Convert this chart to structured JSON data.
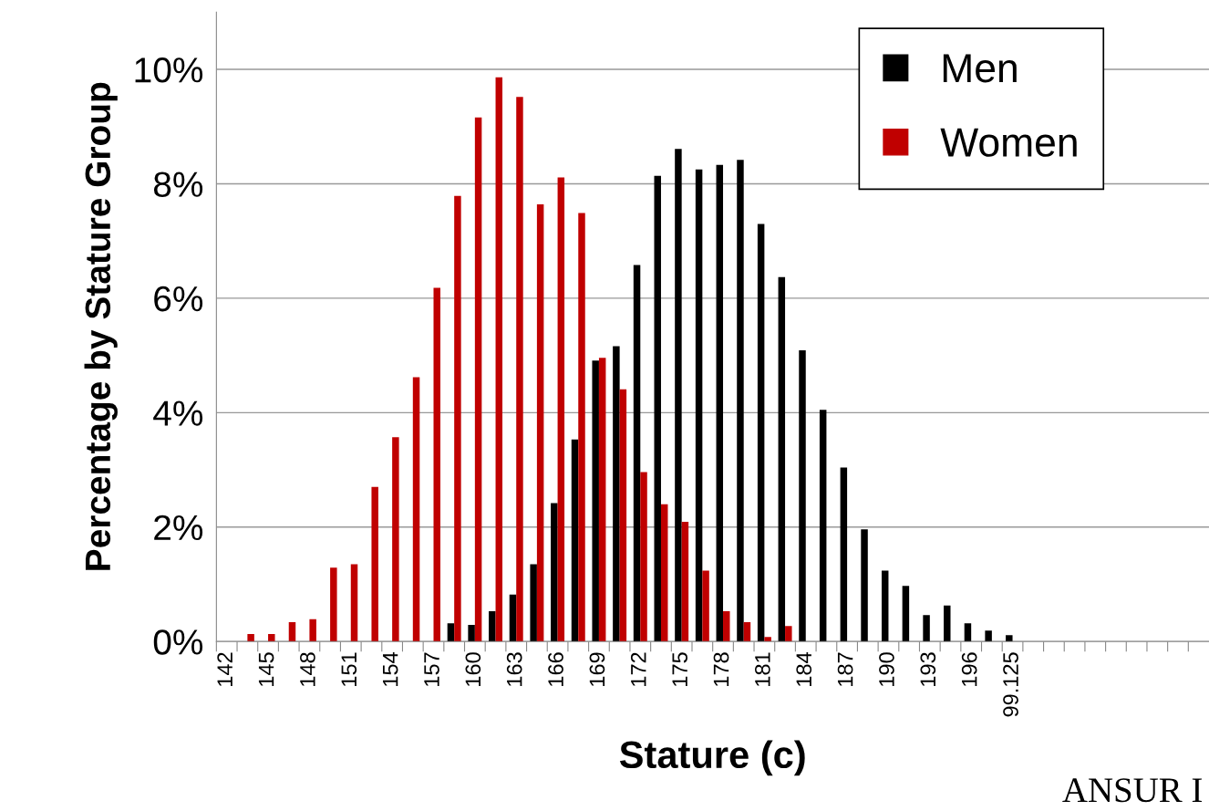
{
  "chart_data": {
    "type": "bar",
    "xlabel": "Stature (c)",
    "ylabel": "Percentage by Stature Group",
    "categories": [
      "142",
      null,
      "145",
      null,
      "148",
      null,
      "151",
      null,
      "154",
      null,
      "157",
      null,
      "160",
      null,
      "163",
      null,
      "166",
      null,
      "169",
      null,
      "172",
      null,
      "175",
      null,
      "178",
      null,
      "181",
      null,
      "184",
      null,
      "187",
      null,
      "190",
      null,
      "193",
      null,
      "196",
      null,
      "99.125",
      null,
      null,
      null,
      null,
      null,
      null,
      null,
      null,
      null
    ],
    "series": [
      {
        "name": "Men",
        "color": "#000000",
        "values": [
          null,
          null,
          null,
          null,
          null,
          null,
          null,
          null,
          null,
          null,
          null,
          0.32,
          0.29,
          0.53,
          0.82,
          1.35,
          2.42,
          3.53,
          4.91,
          5.16,
          6.58,
          8.14,
          8.61,
          8.25,
          8.33,
          8.42,
          7.3,
          6.37,
          5.09,
          4.05,
          3.04,
          1.96,
          1.24,
          0.97,
          0.46,
          0.63,
          0.32,
          0.19,
          0.11,
          null,
          null,
          null,
          null,
          null,
          null,
          null,
          null,
          null
        ]
      },
      {
        "name": "Women",
        "color": "#c00000",
        "values": [
          null,
          0.13,
          0.13,
          0.34,
          0.39,
          1.29,
          1.35,
          2.7,
          3.57,
          4.62,
          6.18,
          7.79,
          9.16,
          9.86,
          9.52,
          7.64,
          8.11,
          7.49,
          4.96,
          4.41,
          2.96,
          2.4,
          2.09,
          1.24,
          0.53,
          0.34,
          0.08,
          0.27,
          null,
          null,
          null,
          null,
          null,
          null,
          null,
          null,
          null,
          null,
          null,
          null,
          null,
          null,
          null,
          null,
          null,
          null,
          null,
          null
        ]
      }
    ],
    "ylim": [
      0,
      11
    ],
    "yticks": [
      {
        "value": 0,
        "label": "0%"
      },
      {
        "value": 2,
        "label": "2%"
      },
      {
        "value": 4,
        "label": "4%"
      },
      {
        "value": 6,
        "label": "6%"
      },
      {
        "value": 8,
        "label": "8%"
      },
      {
        "value": 10,
        "label": "10%"
      }
    ],
    "grid": "y",
    "legend": "top right",
    "annotations": [
      "ANSUR I"
    ]
  }
}
